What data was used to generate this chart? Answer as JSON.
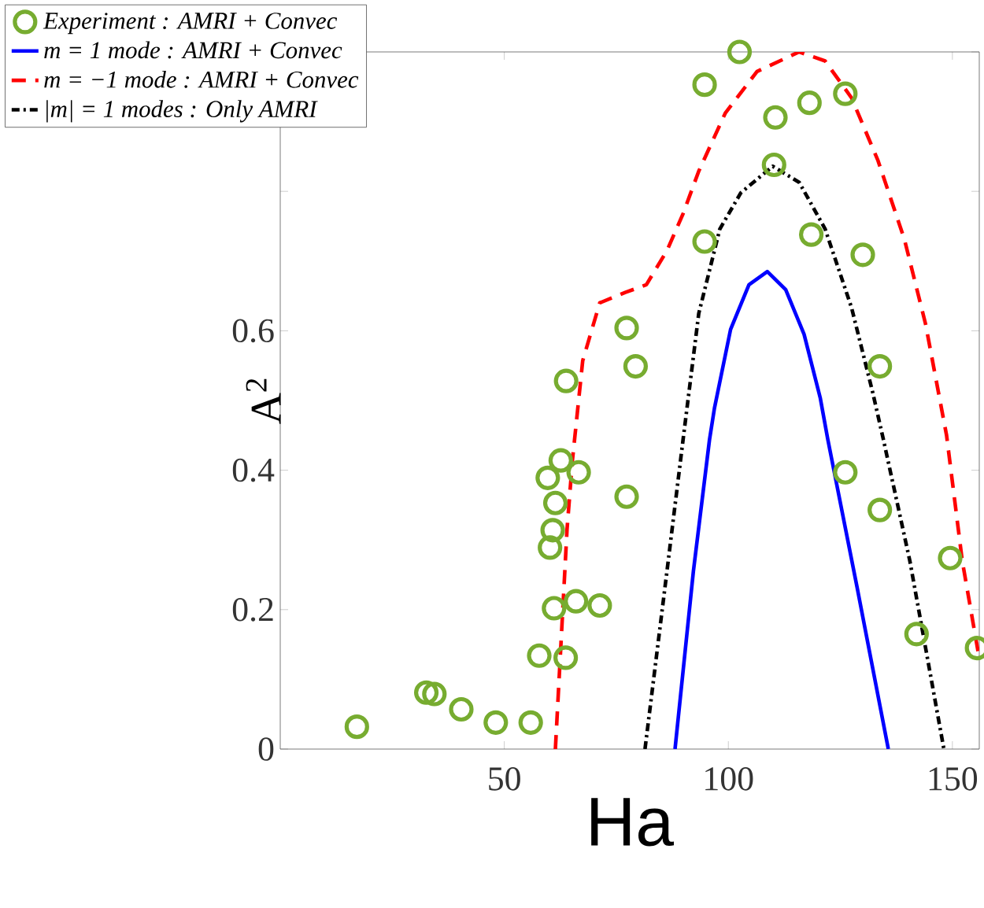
{
  "chart_data": {
    "type": "line",
    "xlabel": "Ha",
    "ylabel": "A$^{2}$",
    "xlim": [
      0,
      156
    ],
    "ylim": [
      0,
      1
    ],
    "xticks": [
      50,
      100,
      150
    ],
    "yticks": [
      0,
      0.2,
      0.4,
      0.6,
      {
        "value": 0.8,
        "label": null
      },
      {
        "value": 1,
        "label": null
      }
    ],
    "legend": "top left",
    "grid": false,
    "series": [
      {
        "name": "Experiment : AMRI + Convec",
        "type": "scatter",
        "marker": "circle",
        "color": "#77ac30",
        "x": [
          17.1,
          32.6,
          34.4,
          40.4,
          48.1,
          55.9,
          57.8,
          63.7,
          61.1,
          66.0,
          71.3,
          60.2,
          60.8,
          61.4,
          59.7,
          62.6,
          66.6,
          77.3,
          126.1,
          133.8,
          149.5,
          142.0,
          155.5,
          63.8,
          77.3,
          79.3,
          94.7,
          118.5,
          130.0,
          110.2,
          110.5,
          118.1,
          126.1,
          94.7,
          102.5,
          133.8
        ],
        "values": [
          0.032,
          0.081,
          0.079,
          0.057,
          0.038,
          0.038,
          0.134,
          0.131,
          0.202,
          0.212,
          0.206,
          0.289,
          0.314,
          0.353,
          0.389,
          0.414,
          0.397,
          0.362,
          0.397,
          0.343,
          0.274,
          0.165,
          0.145,
          0.528,
          0.604,
          0.549,
          0.728,
          0.738,
          0.709,
          0.838,
          0.906,
          0.927,
          0.94,
          0.953,
          1.0,
          0.549
        ]
      },
      {
        "name": "m = 1 mode : AMRI + Convec",
        "line_style": "solid",
        "color": "#0000ff",
        "x": [
          88.1,
          92.2,
          95.8,
          96.9,
          100.5,
          104.6,
          108.7,
          112.8,
          116.9,
          120.5,
          122.2,
          128.7,
          135.7
        ],
        "values": [
          0,
          0.255,
          0.444,
          0.489,
          0.602,
          0.666,
          0.685,
          0.659,
          0.595,
          0.504,
          0.444,
          0.233,
          0
        ]
      },
      {
        "name": "m = −1 mode : AMRI + Convec",
        "line_style": "dashed",
        "color": "#ff0000",
        "x": [
          61.4,
          64.0,
          65.2,
          67.5,
          71.3,
          77.0,
          81.7,
          86.3,
          89.9,
          93.4,
          99.3,
          106.4,
          115.8,
          121.6,
          127.5,
          133.4,
          139.3,
          144.0,
          148.7,
          152.2,
          156.0
        ],
        "values": [
          0,
          0.315,
          0.414,
          0.557,
          0.64,
          0.655,
          0.666,
          0.715,
          0.768,
          0.829,
          0.912,
          0.972,
          1.0,
          0.987,
          0.934,
          0.844,
          0.731,
          0.61,
          0.45,
          0.27,
          0.13
        ]
      },
      {
        "name": "|m| = 1 modes : Only AMRI",
        "line_style": "dashdot",
        "color": "#000000",
        "x": [
          81.4,
          86.3,
          89.9,
          93.4,
          98.1,
          102.8,
          109.9,
          115.8,
          121.6,
          127.5,
          132.2,
          134.6,
          140.5,
          148.1
        ],
        "values": [
          0,
          0.255,
          0.444,
          0.625,
          0.746,
          0.798,
          0.836,
          0.813,
          0.746,
          0.633,
          0.512,
          0.444,
          0.27,
          0
        ]
      }
    ]
  }
}
